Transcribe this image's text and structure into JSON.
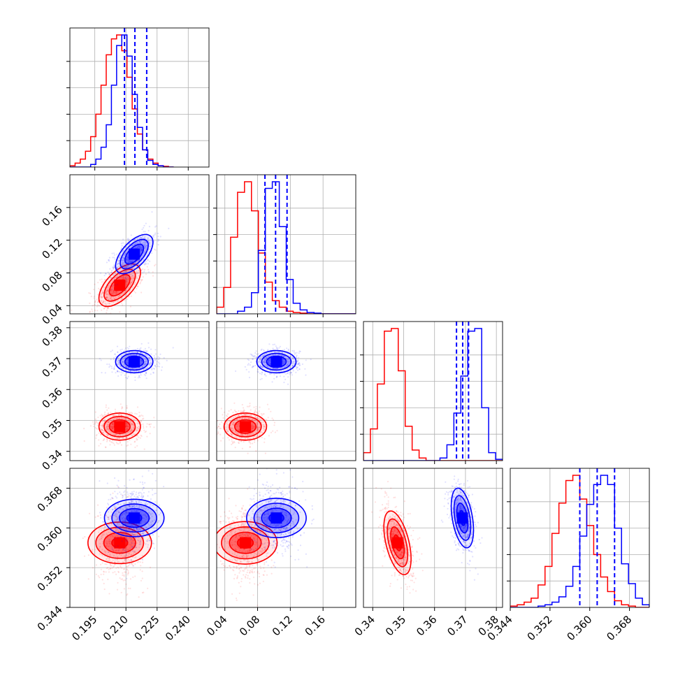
{
  "chart_data": {
    "type": "corner",
    "title": "",
    "parameters": [
      {
        "name": "",
        "range": [
          0.183,
          0.25
        ],
        "ticks": [
          "0.195",
          "0.210",
          "0.225",
          "0.240"
        ],
        "tick_values": [
          0.195,
          0.21,
          0.225,
          0.24
        ]
      },
      {
        "name": "",
        "range": [
          0.03,
          0.2
        ],
        "ticks": [
          "0.04",
          "0.08",
          "0.12",
          "0.16"
        ],
        "tick_values": [
          0.04,
          0.08,
          0.12,
          0.16
        ]
      },
      {
        "name": "",
        "range": [
          0.337,
          0.382
        ],
        "ticks": [
          "0.34",
          "0.35",
          "0.36",
          "0.37",
          "0.38"
        ],
        "tick_values": [
          0.34,
          0.35,
          0.36,
          0.37,
          0.38
        ]
      },
      {
        "name": "",
        "range": [
          0.344,
          0.372
        ],
        "ticks": [
          "0.344",
          "0.352",
          "0.360",
          "0.368"
        ],
        "tick_values": [
          0.344,
          0.352,
          0.36,
          0.368
        ]
      }
    ],
    "series": [
      {
        "color": "#ff0000",
        "means": [
          0.207,
          0.065,
          0.348,
          0.357
        ],
        "sigmas": [
          0.005,
          0.013,
          0.0022,
          0.0032
        ],
        "correlations": [
          [
            0,
            1,
            0.6
          ],
          [
            0,
            2,
            0.0
          ],
          [
            0,
            3,
            0.0
          ],
          [
            1,
            2,
            0.0
          ],
          [
            1,
            3,
            0.0
          ],
          [
            2,
            3,
            -0.5
          ]
        ],
        "quantiles": null,
        "histograms": [
          {
            "edges_start": 0.183,
            "bin_width": 0.0025,
            "counts": [
              0.01,
              0.03,
              0.06,
              0.12,
              0.23,
              0.4,
              0.62,
              0.85,
              0.97,
              1.0,
              0.88,
              0.68,
              0.44,
              0.25,
              0.13,
              0.06,
              0.03,
              0.01,
              0.005,
              0.0
            ]
          },
          {
            "edges_start": 0.03,
            "bin_width": 0.0085,
            "counts": [
              0.05,
              0.2,
              0.58,
              0.92,
              1.0,
              0.78,
              0.46,
              0.24,
              0.1,
              0.05,
              0.02,
              0.01,
              0.005,
              0.0,
              0.0,
              0.0,
              0.0,
              0.0,
              0.0,
              0.0
            ]
          },
          {
            "edges_start": 0.337,
            "bin_width": 0.00225,
            "counts": [
              0.06,
              0.24,
              0.58,
              0.98,
              1.0,
              0.68,
              0.26,
              0.08,
              0.02,
              0.0,
              0.0,
              0.0,
              0.0,
              0.0,
              0.0,
              0.0,
              0.0,
              0.0,
              0.0,
              0.0
            ]
          },
          {
            "edges_start": 0.344,
            "bin_width": 0.0014,
            "counts": [
              0.01,
              0.02,
              0.04,
              0.07,
              0.17,
              0.31,
              0.56,
              0.79,
              0.96,
              1.0,
              0.82,
              0.62,
              0.4,
              0.23,
              0.12,
              0.05,
              0.02,
              0.01,
              0.0,
              0.0
            ]
          }
        ]
      },
      {
        "color": "#0000ff",
        "means": [
          0.214,
          0.103,
          0.369,
          0.362
        ],
        "sigmas": [
          0.0045,
          0.012,
          0.0018,
          0.003
        ],
        "correlations": [
          [
            0,
            1,
            0.6
          ],
          [
            0,
            2,
            0.0
          ],
          [
            0,
            3,
            0.0
          ],
          [
            1,
            2,
            0.0
          ],
          [
            1,
            3,
            0.0
          ],
          [
            2,
            3,
            -0.4
          ]
        ],
        "quantiles": [
          [
            0.2093,
            0.2143,
            0.22
          ],
          [
            0.089,
            0.102,
            0.116
          ],
          [
            0.3671,
            0.3691,
            0.371
          ],
          [
            0.358,
            0.3615,
            0.365
          ]
        ],
        "histograms": [
          {
            "edges_start": 0.183,
            "bin_width": 0.0025,
            "counts": [
              0.0,
              0.0,
              0.0,
              0.0,
              0.02,
              0.06,
              0.15,
              0.32,
              0.62,
              0.92,
              1.0,
              0.84,
              0.55,
              0.3,
              0.13,
              0.05,
              0.02,
              0.01,
              0.0,
              0.0
            ]
          },
          {
            "edges_start": 0.03,
            "bin_width": 0.0085,
            "counts": [
              0.0,
              0.0,
              0.0,
              0.02,
              0.05,
              0.16,
              0.48,
              0.95,
              1.0,
              0.66,
              0.26,
              0.08,
              0.03,
              0.01,
              0.005,
              0.0,
              0.0,
              0.0,
              0.0,
              0.0
            ]
          },
          {
            "edges_start": 0.337,
            "bin_width": 0.00225,
            "counts": [
              0.0,
              0.0,
              0.0,
              0.0,
              0.0,
              0.0,
              0.0,
              0.0,
              0.0,
              0.0,
              0.0,
              0.02,
              0.12,
              0.36,
              0.64,
              0.98,
              1.0,
              0.4,
              0.06,
              0.01
            ]
          },
          {
            "edges_start": 0.344,
            "bin_width": 0.0014,
            "counts": [
              0.0,
              0.0,
              0.0,
              0.0,
              0.01,
              0.02,
              0.04,
              0.08,
              0.16,
              0.31,
              0.54,
              0.78,
              0.93,
              1.0,
              0.93,
              0.6,
              0.33,
              0.18,
              0.07,
              0.02
            ]
          }
        ]
      }
    ],
    "contour_levels_sigma": [
      0.5,
      1.0,
      1.5,
      2.0
    ],
    "grid": true,
    "legend": null
  }
}
